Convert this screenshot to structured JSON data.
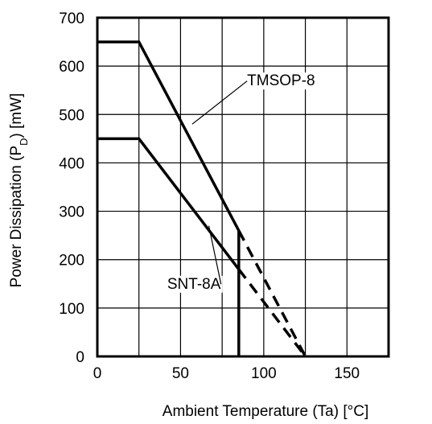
{
  "chart_data": {
    "type": "line",
    "xlabel": "Ambient Temperature (Ta) [°C]",
    "ylabel": {
      "pre": "Power Dissipation (P",
      "sub": "D",
      "post": ") [mW]"
    },
    "xlim": [
      0,
      175
    ],
    "ylim": [
      0,
      700
    ],
    "x_ticks": [
      0,
      25,
      50,
      75,
      100,
      125,
      150,
      175
    ],
    "x_tick_labels": [
      "0",
      "",
      "50",
      "",
      "100",
      "",
      "150",
      ""
    ],
    "y_ticks": [
      0,
      100,
      200,
      300,
      400,
      500,
      600,
      700
    ],
    "y_tick_labels": [
      "0",
      "100",
      "200",
      "300",
      "400",
      "500",
      "600",
      "700"
    ],
    "grid": true,
    "series": [
      {
        "name": "TMSOP-8",
        "solid": [
          [
            0,
            650
          ],
          [
            25,
            650
          ],
          [
            85,
            260
          ]
        ],
        "dashed": [
          [
            85,
            260
          ],
          [
            125,
            0
          ]
        ],
        "cutoff": {
          "x": 85,
          "from": 0,
          "to": 260
        }
      },
      {
        "name": "SNT-8A",
        "solid": [
          [
            0,
            450
          ],
          [
            25,
            450
          ],
          [
            85,
            180
          ]
        ],
        "dashed": [
          [
            85,
            180
          ],
          [
            125,
            0
          ]
        ]
      }
    ],
    "annotations": [
      {
        "text": "TMSOP-8",
        "series": "TMSOP-8",
        "text_at": [
          90,
          560
        ],
        "points_to": [
          57,
          480
        ]
      },
      {
        "text": "SNT-8A",
        "series": "SNT-8A",
        "text_at": [
          42,
          140
        ],
        "points_to": [
          67,
          270
        ]
      }
    ]
  }
}
